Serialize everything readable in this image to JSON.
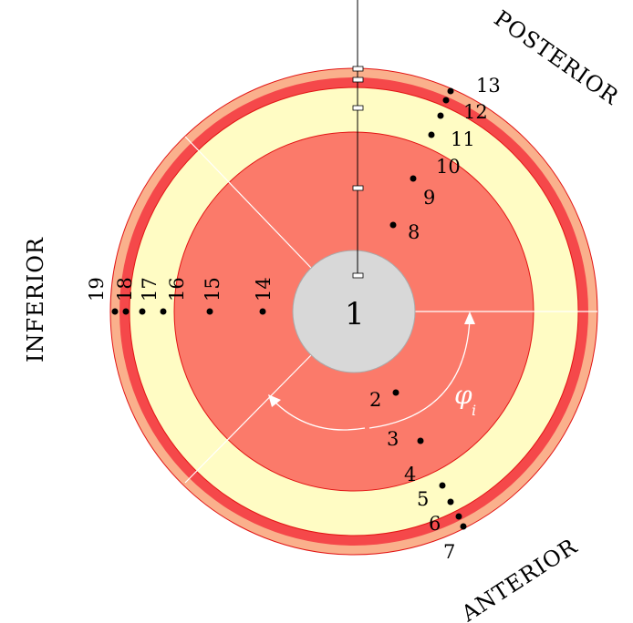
{
  "directions": {
    "posterior": "POSTERIOR",
    "inferior": "INFERIOR",
    "anterior": "ANTERIOR"
  },
  "center_label": "1",
  "angle_label": {
    "symbol": "φ",
    "subscript": "i"
  },
  "points": [
    {
      "label": "2"
    },
    {
      "label": "3"
    },
    {
      "label": "4"
    },
    {
      "label": "5"
    },
    {
      "label": "6"
    },
    {
      "label": "7"
    },
    {
      "label": "8"
    },
    {
      "label": "9"
    },
    {
      "label": "10"
    },
    {
      "label": "11"
    },
    {
      "label": "12"
    },
    {
      "label": "13"
    },
    {
      "label": "14"
    },
    {
      "label": "15"
    },
    {
      "label": "16"
    },
    {
      "label": "17"
    },
    {
      "label": "18"
    },
    {
      "label": "19"
    }
  ],
  "colors": {
    "outer_ring": "#fab08c",
    "red_ring": "#f5484a",
    "yellow_ring": "#fffcc4",
    "salmon_disc": "#fb7a6a",
    "center_disc": "#d8d8d8",
    "outline": "#e21414"
  }
}
